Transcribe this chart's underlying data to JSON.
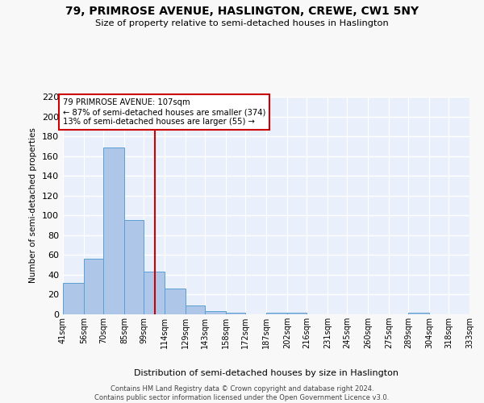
{
  "title_line1": "79, PRIMROSE AVENUE, HASLINGTON, CREWE, CW1 5NY",
  "title_line2": "Size of property relative to semi-detached houses in Haslington",
  "xlabel": "Distribution of semi-detached houses by size in Haslington",
  "ylabel": "Number of semi-detached properties",
  "bar_values": [
    32,
    56,
    169,
    95,
    43,
    26,
    9,
    3,
    2,
    0,
    2,
    2,
    0,
    0,
    0,
    0,
    0,
    2,
    0,
    0
  ],
  "categories": [
    "41sqm",
    "56sqm",
    "70sqm",
    "85sqm",
    "99sqm",
    "114sqm",
    "129sqm",
    "143sqm",
    "158sqm",
    "172sqm",
    "187sqm",
    "202sqm",
    "216sqm",
    "231sqm",
    "245sqm",
    "260sqm",
    "275sqm",
    "289sqm",
    "304sqm",
    "318sqm",
    "333sqm"
  ],
  "bar_color": "#aec6e8",
  "bar_edge_color": "#5a9fd4",
  "background_color": "#eaf0fb",
  "grid_color": "#ffffff",
  "vline_x": 107,
  "vline_color": "#cc0000",
  "annotation_text": "79 PRIMROSE AVENUE: 107sqm\n← 87% of semi-detached houses are smaller (374)\n13% of semi-detached houses are larger (55) →",
  "annotation_box_color": "#ffffff",
  "annotation_border_color": "#cc0000",
  "ylim": [
    0,
    220
  ],
  "yticks": [
    0,
    20,
    40,
    60,
    80,
    100,
    120,
    140,
    160,
    180,
    200,
    220
  ],
  "footer": "Contains HM Land Registry data © Crown copyright and database right 2024.\nContains public sector information licensed under the Open Government Licence v3.0.",
  "bin_edges": [
    41,
    56,
    70,
    85,
    99,
    114,
    129,
    143,
    158,
    172,
    187,
    202,
    216,
    231,
    245,
    260,
    275,
    289,
    304,
    318,
    333
  ]
}
